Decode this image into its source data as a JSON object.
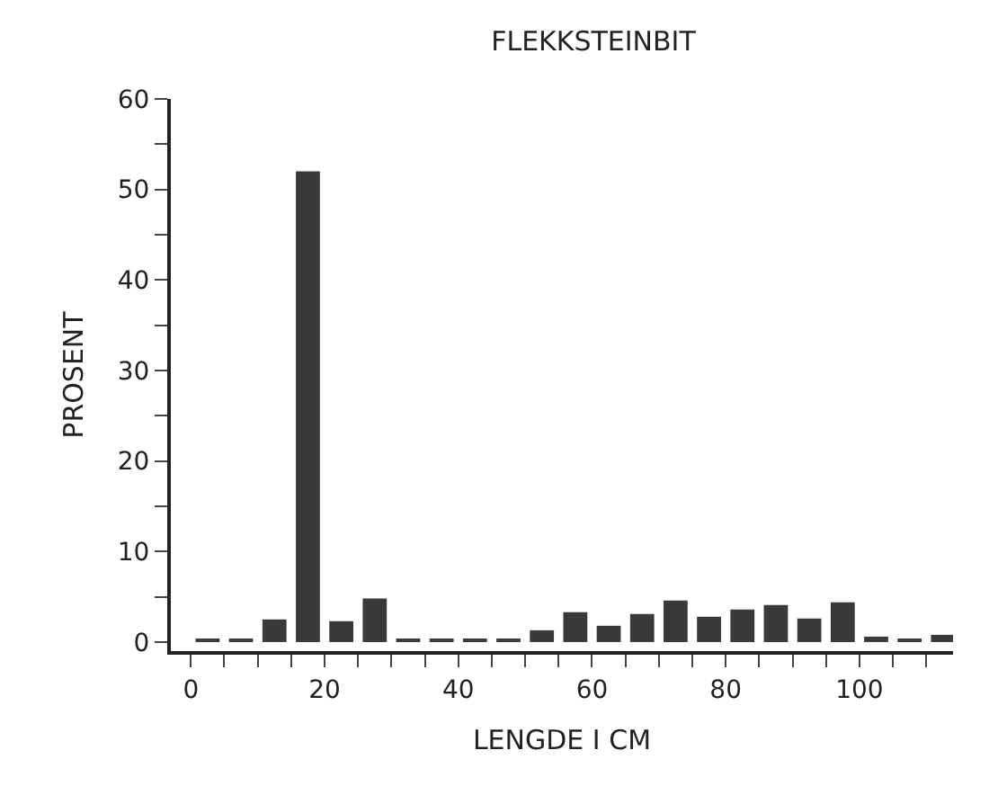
{
  "chart_data": {
    "type": "bar",
    "title": "FLEKKSTEINBIT",
    "xlabel": "LENGDE I CM",
    "ylabel": "PROSENT",
    "x": [
      2.5,
      7.5,
      12.5,
      17.5,
      22.5,
      27.5,
      32.5,
      37.5,
      42.5,
      47.5,
      52.5,
      57.5,
      62.5,
      67.5,
      72.5,
      77.5,
      82.5,
      87.5,
      92.5,
      97.5,
      102.5,
      107.5,
      112.5
    ],
    "values": [
      0.3,
      0.3,
      2.5,
      52,
      2.3,
      4.8,
      0.3,
      0.3,
      0.3,
      0.3,
      1.3,
      3.3,
      1.8,
      3.1,
      4.6,
      2.8,
      3.6,
      4.1,
      2.6,
      4.4,
      0.6,
      0.3,
      0.8
    ],
    "color": "#3a3a3a",
    "xlim": [
      -3,
      114
    ],
    "ylim": [
      -1,
      60
    ],
    "xticks": [
      0,
      {
        "value": 5,
        "label": null
      },
      {
        "value": 10,
        "label": null
      },
      {
        "value": 15,
        "label": null
      },
      20,
      {
        "value": 25,
        "label": null
      },
      {
        "value": 30,
        "label": null
      },
      {
        "value": 35,
        "label": null
      },
      40,
      {
        "value": 45,
        "label": null
      },
      {
        "value": 50,
        "label": null
      },
      {
        "value": 55,
        "label": null
      },
      60,
      {
        "value": 65,
        "label": null
      },
      {
        "value": 70,
        "label": null
      },
      {
        "value": 75,
        "label": null
      },
      80,
      {
        "value": 85,
        "label": null
      },
      {
        "value": 90,
        "label": null
      },
      {
        "value": 95,
        "label": null
      },
      100,
      {
        "value": 105,
        "label": null
      },
      {
        "value": 110,
        "label": null
      }
    ],
    "yticks": [
      0,
      {
        "value": 5,
        "label": null
      },
      10,
      {
        "value": 15,
        "label": null
      },
      20,
      {
        "value": 25,
        "label": null
      },
      30,
      {
        "value": 35,
        "label": null
      },
      40,
      {
        "value": 45,
        "label": null
      },
      50,
      {
        "value": 55,
        "label": null
      },
      60
    ]
  }
}
